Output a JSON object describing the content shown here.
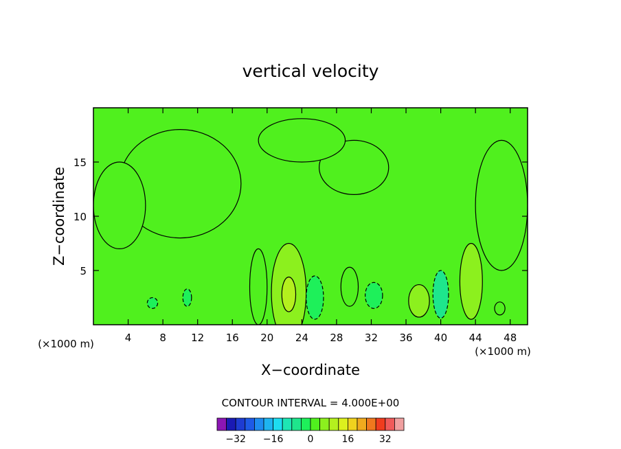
{
  "chart_data": {
    "type": "heatmap",
    "title": "vertical velocity",
    "xlabel": "X−coordinate",
    "ylabel": "Z−coordinate",
    "x_unit": "(×1000 m)",
    "y_unit": "(×1000 m)",
    "xlim": [
      0,
      50
    ],
    "ylim": [
      0,
      20
    ],
    "x_ticks": [
      4,
      8,
      12,
      16,
      20,
      24,
      28,
      32,
      36,
      40,
      44,
      48
    ],
    "x_tick_labels": [
      "4",
      "8",
      "12",
      "16",
      "20",
      "24",
      "28",
      "32",
      "36",
      "40",
      "44",
      "48"
    ],
    "y_ticks": [
      5,
      10,
      15
    ],
    "y_tick_labels": [
      "5",
      "10",
      "15"
    ],
    "contour_interval_text": "CONTOUR INTERVAL =  4.000E+00",
    "colorbar": {
      "levels": [
        -36,
        -32,
        -28,
        -24,
        -20,
        -16,
        -12,
        -8,
        -4,
        0,
        4,
        8,
        12,
        16,
        20,
        24,
        28,
        32,
        36
      ],
      "colors": [
        "#8c16b4",
        "#1a1ab4",
        "#1e3cd2",
        "#1e5ae6",
        "#1e8cf0",
        "#1eb4f0",
        "#1edcf0",
        "#1ee6b4",
        "#1ee68c",
        "#1ef05a",
        "#50f01e",
        "#8cf01e",
        "#b4f01e",
        "#dcf01e",
        "#f0d21e",
        "#f0aa1e",
        "#f0781e",
        "#f03c1e",
        "#f05a5a",
        "#f0a0a0"
      ],
      "tick_labels": [
        "−32",
        "−16",
        "0",
        "16",
        "32"
      ],
      "tick_values": [
        -32,
        -16,
        0,
        16,
        32
      ]
    },
    "background_level": 0,
    "features": [
      {
        "x": 22.5,
        "z": 3.0,
        "rx": 2.0,
        "rz": 4.5,
        "value": 6
      },
      {
        "x": 22.5,
        "z": 2.8,
        "rx": 0.8,
        "rz": 1.6,
        "value": 10
      },
      {
        "x": 19.0,
        "z": 3.5,
        "rx": 1.0,
        "rz": 3.5,
        "value": 3
      },
      {
        "x": 25.5,
        "z": 2.5,
        "rx": 1.0,
        "rz": 2.0,
        "value": -2
      },
      {
        "x": 29.5,
        "z": 3.5,
        "rx": 1.0,
        "rz": 1.8,
        "value": 3
      },
      {
        "x": 32.3,
        "z": 2.7,
        "rx": 1.0,
        "rz": 1.2,
        "value": -3
      },
      {
        "x": 37.5,
        "z": 2.2,
        "rx": 1.2,
        "rz": 1.5,
        "value": 5
      },
      {
        "x": 40.0,
        "z": 2.8,
        "rx": 0.9,
        "rz": 2.2,
        "value": -6
      },
      {
        "x": 43.5,
        "z": 4.0,
        "rx": 1.3,
        "rz": 3.5,
        "value": 5
      },
      {
        "x": 46.8,
        "z": 1.5,
        "rx": 0.6,
        "rz": 0.6,
        "value": 3
      },
      {
        "x": 6.8,
        "z": 2.0,
        "rx": 0.6,
        "rz": 0.5,
        "value": -2
      },
      {
        "x": 10.8,
        "z": 2.5,
        "rx": 0.5,
        "rz": 0.8,
        "value": -2
      },
      {
        "x": 10.0,
        "z": 13.0,
        "rx": 7.0,
        "rz": 5.0,
        "value": 2
      },
      {
        "x": 30.0,
        "z": 14.5,
        "rx": 4.0,
        "rz": 2.5,
        "value": 2
      },
      {
        "x": 3.0,
        "z": 11.0,
        "rx": 3.0,
        "rz": 4.0,
        "value": 2
      },
      {
        "x": 47.0,
        "z": 11.0,
        "rx": 3.0,
        "rz": 6.0,
        "value": 2
      },
      {
        "x": 24.0,
        "z": 17.0,
        "rx": 5.0,
        "rz": 2.0,
        "value": 2
      }
    ]
  }
}
